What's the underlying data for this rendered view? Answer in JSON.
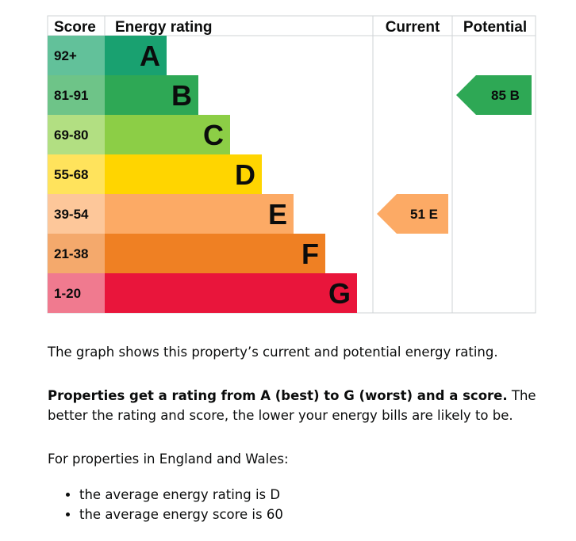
{
  "chart_data": {
    "type": "bar",
    "columns": {
      "score": "Score",
      "rating": "Energy rating",
      "current": "Current",
      "potential": "Potential"
    },
    "bands": [
      {
        "letter": "A",
        "range": "92+",
        "color": "#19a170",
        "score_bg": "#62c19a"
      },
      {
        "letter": "B",
        "range": "81-91",
        "color": "#2ea855",
        "score_bg": "#6ec488"
      },
      {
        "letter": "C",
        "range": "69-80",
        "color": "#8cce46",
        "score_bg": "#b2df82"
      },
      {
        "letter": "D",
        "range": "55-68",
        "color": "#ffd500",
        "score_bg": "#ffe35c"
      },
      {
        "letter": "E",
        "range": "39-54",
        "color": "#fcaa65",
        "score_bg": "#fdc79a"
      },
      {
        "letter": "F",
        "range": "21-38",
        "color": "#ef8023",
        "score_bg": "#f4a96c"
      },
      {
        "letter": "G",
        "range": "1-20",
        "color": "#e9153b",
        "score_bg": "#f07a8f"
      }
    ],
    "current": {
      "score": 51,
      "letter": "E",
      "label": "51 E",
      "color": "#fcaa65"
    },
    "potential": {
      "score": 85,
      "letter": "B",
      "label": "85 B",
      "color": "#2ea855"
    }
  },
  "text": {
    "p1": "The graph shows this property’s current and potential energy rating.",
    "p2_bold": "Properties get a rating from A (best) to G (worst) and a score.",
    "p2_rest": " The better the rating and score, the lower your energy bills are likely to be.",
    "p3": "For properties in England and Wales:",
    "bullets": [
      "the average energy rating is D",
      "the average energy score is 60"
    ]
  }
}
